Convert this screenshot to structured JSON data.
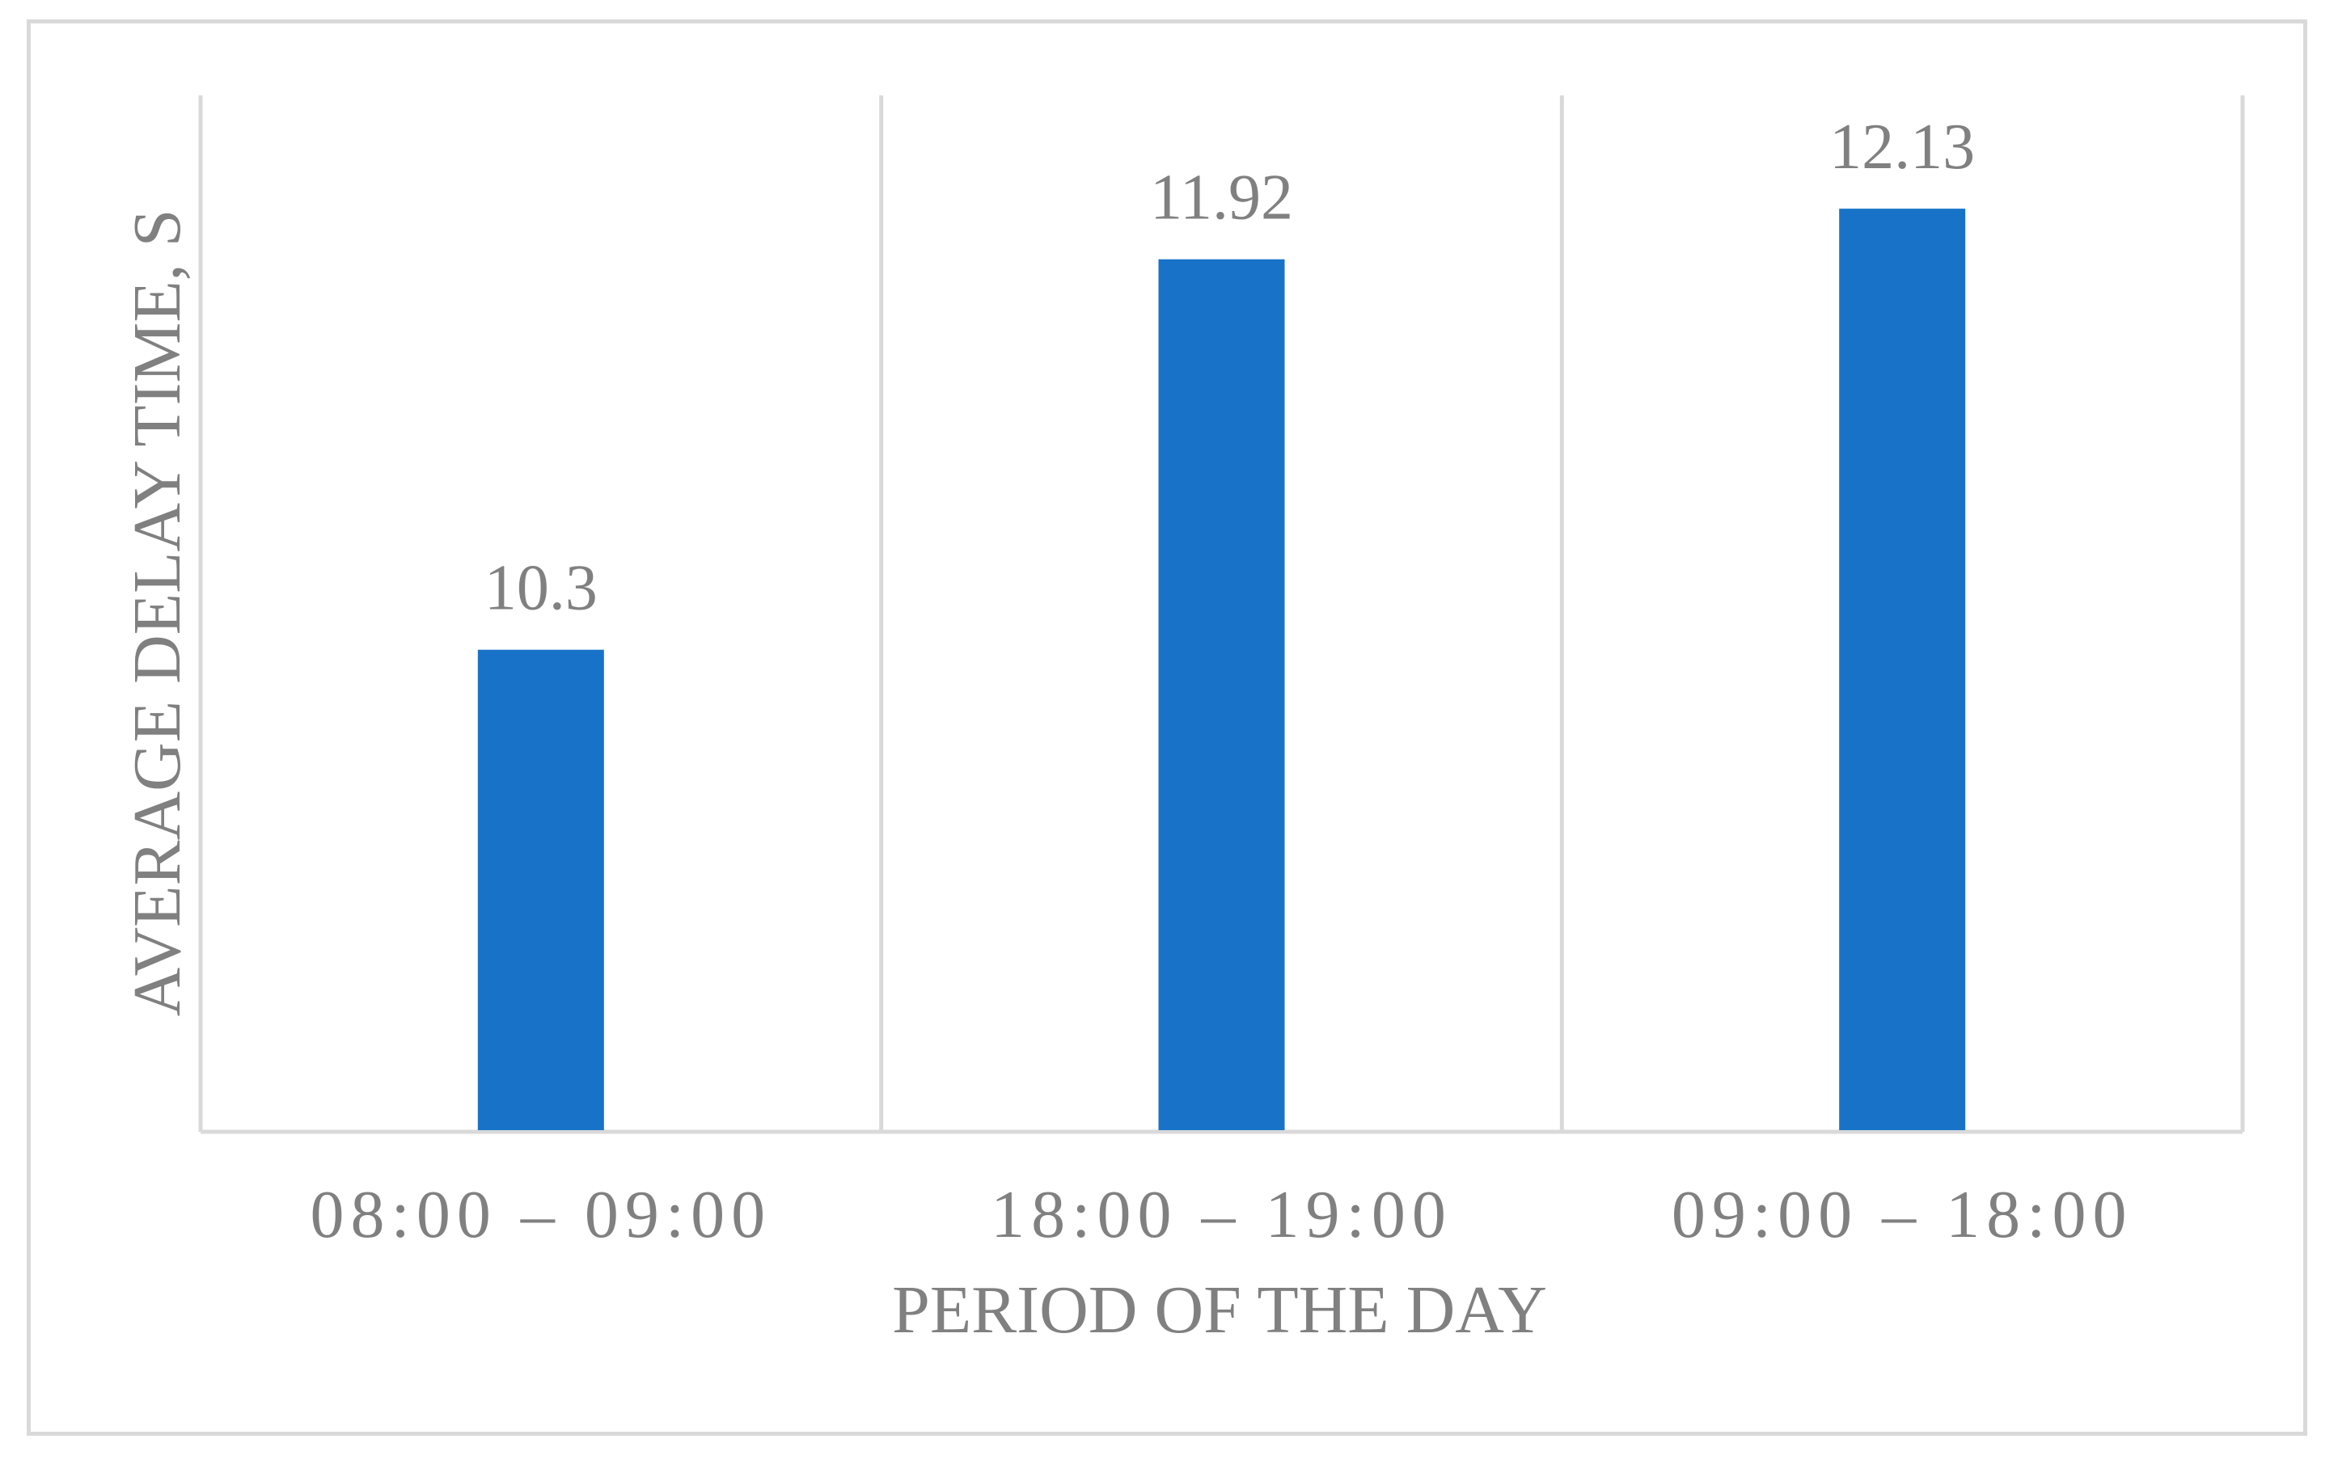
{
  "chart_data": {
    "type": "bar",
    "categories": [
      "08:00 – 09:00",
      "18:00 – 19:00",
      "09:00 – 18:00"
    ],
    "values": [
      10.3,
      11.92,
      12.13
    ],
    "data_labels": [
      "10.3",
      "11.92",
      "12.13"
    ],
    "xlabel": "PERIOD OF THE DAY",
    "ylabel": "AVERAGE DELAY TIME, S",
    "ylim": [
      8.3,
      12.6
    ],
    "grid": "vertical category separators",
    "legend": "none",
    "colors": {
      "bar": "#1873C8",
      "axis": "#d9d9d9",
      "text": "#808080"
    }
  }
}
